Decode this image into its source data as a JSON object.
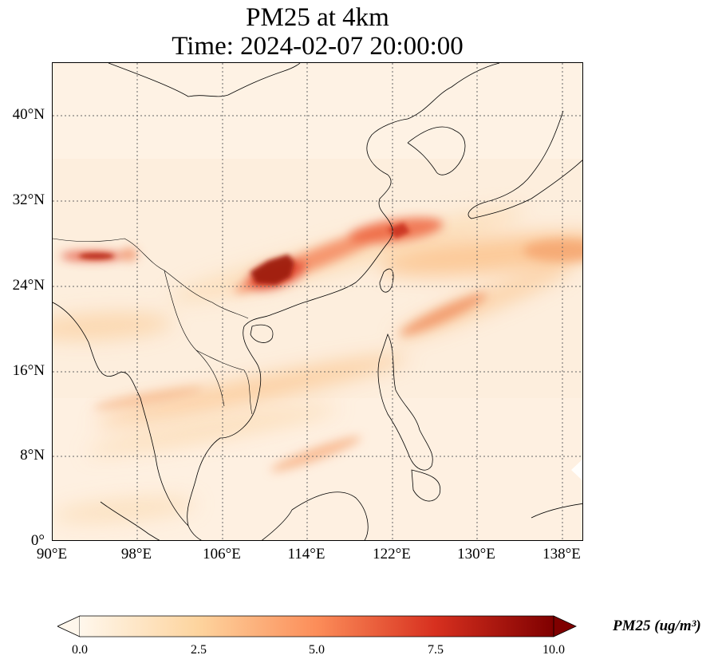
{
  "title": {
    "line1": "PM25 at 4km",
    "line2": "Time: 2024-02-07 20:00:00"
  },
  "map": {
    "lon_range": [
      90,
      140
    ],
    "lat_range": [
      0,
      45
    ],
    "gridlines": "dotted",
    "features": [
      "coastlines",
      "country-borders"
    ],
    "colormap": "OrRd",
    "lat_ticks": [
      "40°N",
      "32°N",
      "24°N",
      "16°N",
      "8°N",
      "0°"
    ],
    "lon_ticks": [
      "90°E",
      "98°E",
      "106°E",
      "114°E",
      "122°E",
      "130°E",
      "138°E"
    ]
  },
  "colorbar": {
    "min": 0.0,
    "max": 10.0,
    "extend": "both",
    "ticks": [
      "0.0",
      "2.5",
      "5.0",
      "7.5",
      "10.0"
    ],
    "label": "PM25 (ug/m³)",
    "colors": [
      "#fff7ec",
      "#fdd49e",
      "#fc8d59",
      "#d7301f",
      "#7f0000"
    ]
  }
}
